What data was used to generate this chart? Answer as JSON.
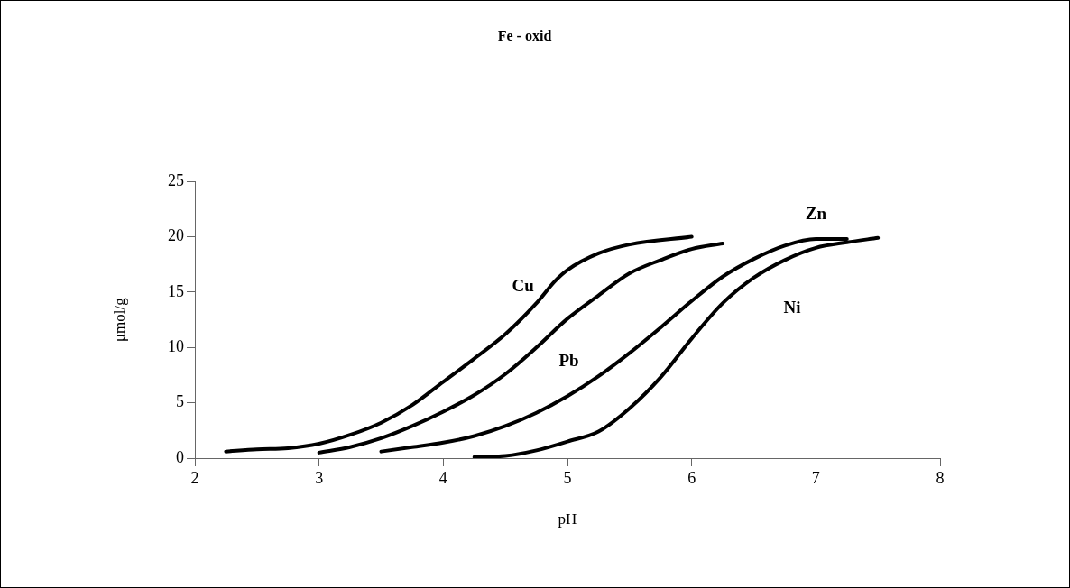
{
  "chart_data": {
    "type": "line",
    "title": "Fe - oxid",
    "xlabel": "pH",
    "ylabel": "μmol/g",
    "xlim": [
      2,
      8
    ],
    "xticks": [
      2,
      3,
      4,
      5,
      6,
      7,
      8
    ],
    "ylim": [
      0,
      25
    ],
    "yticks": [
      0,
      5,
      10,
      15,
      20,
      25
    ],
    "grid": false,
    "legend": false,
    "marker": "none",
    "line_style": "solid",
    "series": [
      {
        "name": "Cu",
        "color": "#000000",
        "x": [
          2.25,
          2.5,
          2.75,
          3.0,
          3.25,
          3.5,
          3.75,
          4.0,
          4.25,
          4.5,
          4.75,
          4.9,
          5.0,
          5.25,
          5.5,
          6.0
        ],
        "values": [
          0.6,
          0.8,
          0.9,
          1.3,
          2.1,
          3.2,
          4.8,
          6.9,
          9.0,
          11.2,
          14.0,
          16.0,
          17.0,
          18.5,
          19.3,
          20.0
        ]
      },
      {
        "name": "Pb",
        "color": "#000000",
        "x": [
          3.0,
          3.25,
          3.5,
          3.75,
          4.0,
          4.25,
          4.5,
          4.75,
          5.0,
          5.25,
          5.5,
          5.75,
          6.0,
          6.25
        ],
        "values": [
          0.5,
          1.0,
          1.8,
          2.9,
          4.2,
          5.7,
          7.6,
          10.0,
          12.6,
          14.7,
          16.7,
          17.9,
          18.9,
          19.4
        ]
      },
      {
        "name": "Zn",
        "color": "#000000",
        "x": [
          3.5,
          3.75,
          4.0,
          4.25,
          4.5,
          4.75,
          5.0,
          5.25,
          5.5,
          5.75,
          6.0,
          6.25,
          6.5,
          6.75,
          7.0,
          7.25
        ],
        "values": [
          0.6,
          1.0,
          1.4,
          2.0,
          2.9,
          4.1,
          5.6,
          7.4,
          9.5,
          11.8,
          14.2,
          16.4,
          18.0,
          19.2,
          19.8,
          19.8
        ]
      },
      {
        "name": "Ni",
        "color": "#000000",
        "x": [
          4.25,
          4.5,
          4.75,
          5.0,
          5.25,
          5.5,
          5.75,
          6.0,
          6.25,
          6.5,
          6.75,
          7.0,
          7.25,
          7.5
        ],
        "values": [
          0.1,
          0.2,
          0.7,
          1.5,
          2.4,
          4.5,
          7.3,
          10.8,
          14.0,
          16.3,
          17.9,
          19.0,
          19.5,
          19.9
        ]
      }
    ]
  }
}
